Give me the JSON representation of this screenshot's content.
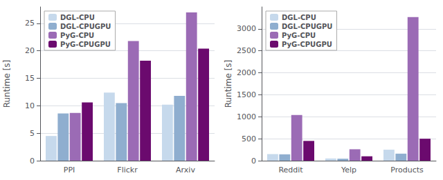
{
  "chart_data": [
    {
      "type": "bar",
      "categories": [
        "PPI",
        "Flickr",
        "Arxiv"
      ],
      "series": [
        {
          "name": "DGL-CPU",
          "color": "#c6d9ec",
          "values": [
            4.5,
            12.4,
            10.2
          ]
        },
        {
          "name": "DGL-CPUGPU",
          "color": "#8faecf",
          "values": [
            8.6,
            10.5,
            11.8
          ]
        },
        {
          "name": "PyG-CPU",
          "color": "#9b6bb5",
          "values": [
            8.7,
            21.8,
            27.0
          ]
        },
        {
          "name": "PyG-CPUGPU",
          "color": "#6b0a6e",
          "values": [
            10.6,
            18.2,
            20.4
          ]
        }
      ],
      "ylabel": "Runtime [s]",
      "ylim": [
        0,
        28
      ],
      "yticks": [
        0,
        5,
        10,
        15,
        20,
        25
      ],
      "grid": true,
      "legend": "upper left"
    },
    {
      "type": "bar",
      "categories": [
        "Reddit",
        "Yelp",
        "Products"
      ],
      "series": [
        {
          "name": "DGL-CPU",
          "color": "#c6d9ec",
          "values": [
            150,
            50,
            250
          ]
        },
        {
          "name": "DGL-CPUGPU",
          "color": "#8faecf",
          "values": [
            145,
            45,
            160
          ]
        },
        {
          "name": "PyG-CPU",
          "color": "#9b6bb5",
          "values": [
            1040,
            260,
            3270
          ]
        },
        {
          "name": "PyG-CPUGPU",
          "color": "#6b0a6e",
          "values": [
            450,
            100,
            500
          ]
        }
      ],
      "ylabel": "Runtime [s]",
      "ylim": [
        0,
        3500
      ],
      "yticks": [
        0,
        500,
        1000,
        1500,
        2000,
        2500,
        3000
      ],
      "grid": true,
      "legend": "upper left"
    }
  ]
}
